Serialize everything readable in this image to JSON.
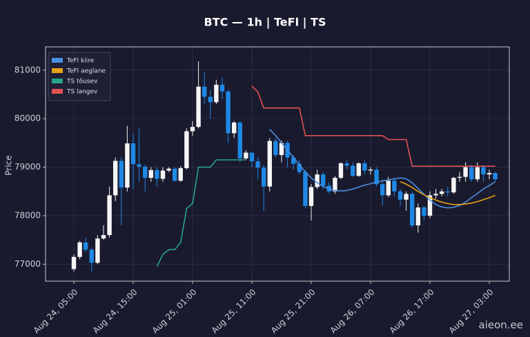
{
  "chart_data": {
    "type": "candlestick",
    "title": "BTC — 1h  |  TeFl  |  TS",
    "ylabel": "Price",
    "categories": [
      "Aug 24, 05:00",
      null,
      null,
      null,
      null,
      null,
      null,
      null,
      null,
      null,
      "Aug 24, 15:00",
      null,
      null,
      null,
      null,
      null,
      null,
      null,
      null,
      null,
      "Aug 25, 01:00",
      null,
      null,
      null,
      null,
      null,
      null,
      null,
      null,
      null,
      "Aug 25, 11:00",
      null,
      null,
      null,
      null,
      null,
      null,
      null,
      null,
      null,
      "Aug 25, 21:00",
      null,
      null,
      null,
      null,
      null,
      null,
      null,
      null,
      null,
      "Aug 26, 07:00",
      null,
      null,
      null,
      null,
      null,
      null,
      null,
      null,
      null,
      "Aug 26, 17:00",
      null,
      null,
      null,
      null,
      null,
      null,
      null,
      null,
      null,
      "Aug 27, 03:00",
      null
    ],
    "open": [
      76900,
      77150,
      77450,
      77300,
      77030,
      77530,
      77600,
      78420,
      79130,
      78580,
      79490,
      79060,
      79010,
      78780,
      78940,
      78760,
      78930,
      78970,
      78720,
      78980,
      79740,
      79830,
      80660,
      80450,
      80340,
      80700,
      80560,
      79700,
      79920,
      79180,
      79300,
      79120,
      78990,
      78600,
      79540,
      79250,
      79500,
      79200,
      79070,
      78900,
      78200,
      78590,
      78850,
      78620,
      78500,
      78780,
      79080,
      79030,
      78820,
      79080,
      78930,
      78950,
      78650,
      78420,
      78720,
      78500,
      78330,
      78450,
      77800,
      78170,
      78000,
      78420,
      78450,
      78500,
      78480,
      78780,
      78800,
      79000,
      78750,
      79000,
      78850,
      78880
    ],
    "high": [
      77200,
      77480,
      77550,
      77350,
      77600,
      77800,
      78600,
      79200,
      79200,
      79850,
      79700,
      79800,
      79050,
      79000,
      79000,
      79000,
      79000,
      79000,
      79020,
      79800,
      79950,
      81180,
      80950,
      80600,
      80800,
      80850,
      80600,
      79950,
      79950,
      79350,
      79300,
      79200,
      79050,
      79600,
      79600,
      79550,
      79550,
      79250,
      79150,
      78950,
      78650,
      78950,
      78900,
      78700,
      78820,
      79100,
      79150,
      79100,
      79100,
      79150,
      79000,
      79000,
      78700,
      78800,
      78780,
      78550,
      78500,
      78500,
      78250,
      78200,
      78500,
      78550,
      78550,
      78600,
      78800,
      78900,
      79100,
      79050,
      79100,
      79050,
      78950,
      78900
    ],
    "low": [
      76850,
      77100,
      77250,
      76850,
      77000,
      77500,
      77550,
      78300,
      77800,
      78500,
      78550,
      78700,
      78500,
      78700,
      78600,
      78700,
      78900,
      78700,
      78700,
      78950,
      79650,
      79800,
      80300,
      80000,
      80300,
      80400,
      79500,
      79600,
      79100,
      79150,
      79000,
      78750,
      78100,
      78500,
      79200,
      79100,
      79000,
      78950,
      78850,
      78150,
      77900,
      78550,
      78550,
      78450,
      78450,
      78750,
      78950,
      78800,
      78800,
      78850,
      78850,
      78600,
      78200,
      78380,
      78400,
      78200,
      78100,
      77750,
      77650,
      77900,
      77950,
      78350,
      78400,
      78400,
      78450,
      78700,
      78700,
      78700,
      78700,
      78700,
      78750,
      78700
    ],
    "close": [
      77150,
      77450,
      77300,
      77030,
      77530,
      77600,
      78420,
      79130,
      78580,
      79490,
      79060,
      79010,
      78780,
      78940,
      78760,
      78930,
      78970,
      78720,
      78980,
      79740,
      79830,
      80660,
      80450,
      80340,
      80700,
      80560,
      79700,
      79920,
      79180,
      79300,
      79120,
      78990,
      78600,
      79540,
      79250,
      79500,
      79200,
      79070,
      78900,
      78200,
      78590,
      78850,
      78620,
      78500,
      78780,
      79080,
      79030,
      78820,
      79080,
      78930,
      78950,
      78650,
      78420,
      78720,
      78500,
      78330,
      78450,
      77800,
      78170,
      78000,
      78420,
      78450,
      78500,
      78480,
      78780,
      78800,
      79000,
      78750,
      79000,
      78850,
      78880,
      78750
    ],
    "up_color": "#f5f5f5",
    "down_color": "#1e88e5",
    "series": [
      {
        "name": "TeFl kiire",
        "color": "#4a90e2",
        "values": [
          null,
          null,
          null,
          null,
          null,
          null,
          null,
          null,
          null,
          null,
          null,
          null,
          null,
          null,
          null,
          null,
          null,
          null,
          null,
          null,
          null,
          null,
          null,
          null,
          null,
          null,
          null,
          null,
          null,
          null,
          null,
          null,
          null,
          79780,
          79650,
          79500,
          79350,
          79200,
          79050,
          78900,
          78780,
          78680,
          78600,
          78550,
          78520,
          78510,
          78520,
          78550,
          78590,
          78630,
          78660,
          78690,
          78720,
          78740,
          78760,
          78780,
          78760,
          78680,
          78560,
          78440,
          78320,
          78230,
          78180,
          78160,
          78170,
          78210,
          78280,
          78370,
          78460,
          78550,
          78620,
          78700
        ]
      },
      {
        "name": "TeFl aeglane",
        "color": "#e8a317",
        "values": [
          null,
          null,
          null,
          null,
          null,
          null,
          null,
          null,
          null,
          null,
          null,
          null,
          null,
          null,
          null,
          null,
          null,
          null,
          null,
          null,
          null,
          null,
          null,
          null,
          null,
          null,
          null,
          null,
          null,
          null,
          null,
          null,
          null,
          null,
          null,
          null,
          null,
          null,
          null,
          null,
          null,
          null,
          null,
          null,
          null,
          null,
          null,
          null,
          null,
          null,
          null,
          null,
          null,
          null,
          null,
          78700,
          78650,
          78580,
          78500,
          78430,
          78370,
          78320,
          78280,
          78250,
          78230,
          78230,
          78240,
          78260,
          78290,
          78330,
          78370,
          78420
        ]
      },
      {
        "name": "TS tõusev",
        "color": "#26a688",
        "values": [
          null,
          null,
          null,
          null,
          null,
          null,
          null,
          null,
          null,
          null,
          null,
          null,
          null,
          null,
          76950,
          77200,
          77300,
          77300,
          77450,
          78150,
          78250,
          79000,
          79000,
          79000,
          79150,
          79150,
          79150,
          79150,
          79150,
          79150,
          null,
          null,
          null,
          null,
          null,
          null,
          null,
          null,
          null,
          null,
          null,
          null,
          null,
          null,
          null,
          null,
          null,
          null,
          null,
          null,
          null,
          null,
          null,
          null,
          null,
          null,
          null,
          null,
          null,
          null,
          null,
          null,
          null,
          null,
          null,
          null,
          null,
          null,
          null,
          null,
          null,
          null
        ]
      },
      {
        "name": "TS langev",
        "color": "#e05252",
        "values": [
          null,
          null,
          null,
          null,
          null,
          null,
          null,
          null,
          null,
          null,
          null,
          null,
          null,
          null,
          null,
          null,
          null,
          null,
          null,
          null,
          null,
          null,
          null,
          null,
          null,
          null,
          null,
          null,
          null,
          null,
          80670,
          80550,
          80220,
          80220,
          80220,
          80220,
          80220,
          80220,
          80220,
          79650,
          79650,
          79650,
          79650,
          79650,
          79650,
          79650,
          79650,
          79650,
          79650,
          79650,
          79650,
          79650,
          79650,
          79570,
          79570,
          79570,
          79570,
          79020,
          79020,
          79020,
          79020,
          79020,
          79020,
          79020,
          79020,
          79020,
          79020,
          79020,
          79020,
          79020,
          79020,
          79020
        ]
      }
    ],
    "ylim": [
      76650,
      81480
    ],
    "yticks": [
      77000,
      78000,
      79000,
      80000,
      81000
    ],
    "grid": true,
    "legend": "upper left"
  },
  "watermark": "aieon.ee"
}
